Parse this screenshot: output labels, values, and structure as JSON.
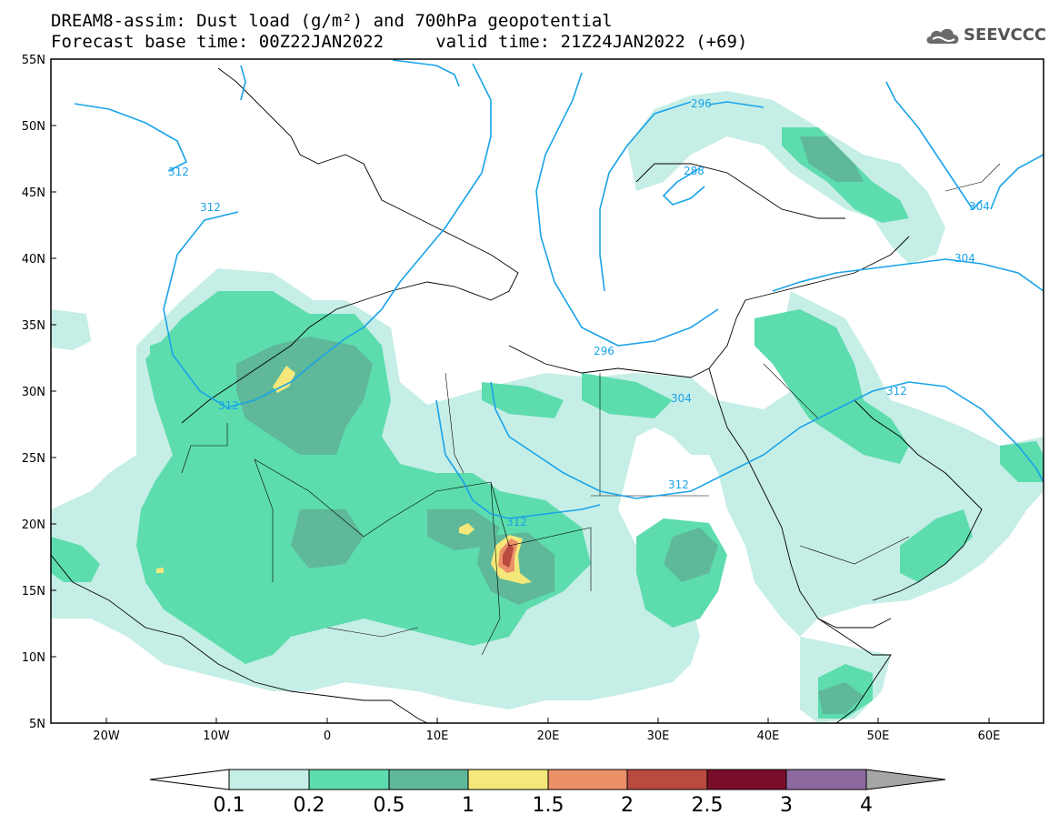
{
  "title": {
    "line1": "DREAM8-assim: Dust load (g/m²) and 700hPa geopotential",
    "line2": "Forecast base time: 00Z22JAN2022     valid time: 21Z24JAN2022 (+69)"
  },
  "logo": {
    "text": "SEEVCCC",
    "icon": "cloud-logo-icon"
  },
  "axes": {
    "x_ticks": [
      "20W",
      "10W",
      "0",
      "10E",
      "20E",
      "30E",
      "40E",
      "50E",
      "60E"
    ],
    "y_ticks": [
      "55N",
      "50N",
      "45N",
      "40N",
      "35N",
      "30N",
      "25N",
      "20N",
      "15N",
      "10N",
      "5N"
    ]
  },
  "contours": {
    "color": "#1aa3e8",
    "labels": [
      "312",
      "312",
      "312",
      "296",
      "288",
      "304",
      "304",
      "296",
      "304",
      "312",
      "312",
      "312"
    ]
  },
  "colorbar": {
    "labels": [
      "0.1",
      "0.2",
      "0.5",
      "1",
      "1.5",
      "2",
      "2.5",
      "3",
      "4"
    ],
    "colors": [
      "#c5eee6",
      "#5ddcae",
      "#5eb899",
      "#f4e87a",
      "#ec9068",
      "#b84a40",
      "#7a0e2a",
      "#8c6aa0",
      "#a6a6a6"
    ]
  }
}
